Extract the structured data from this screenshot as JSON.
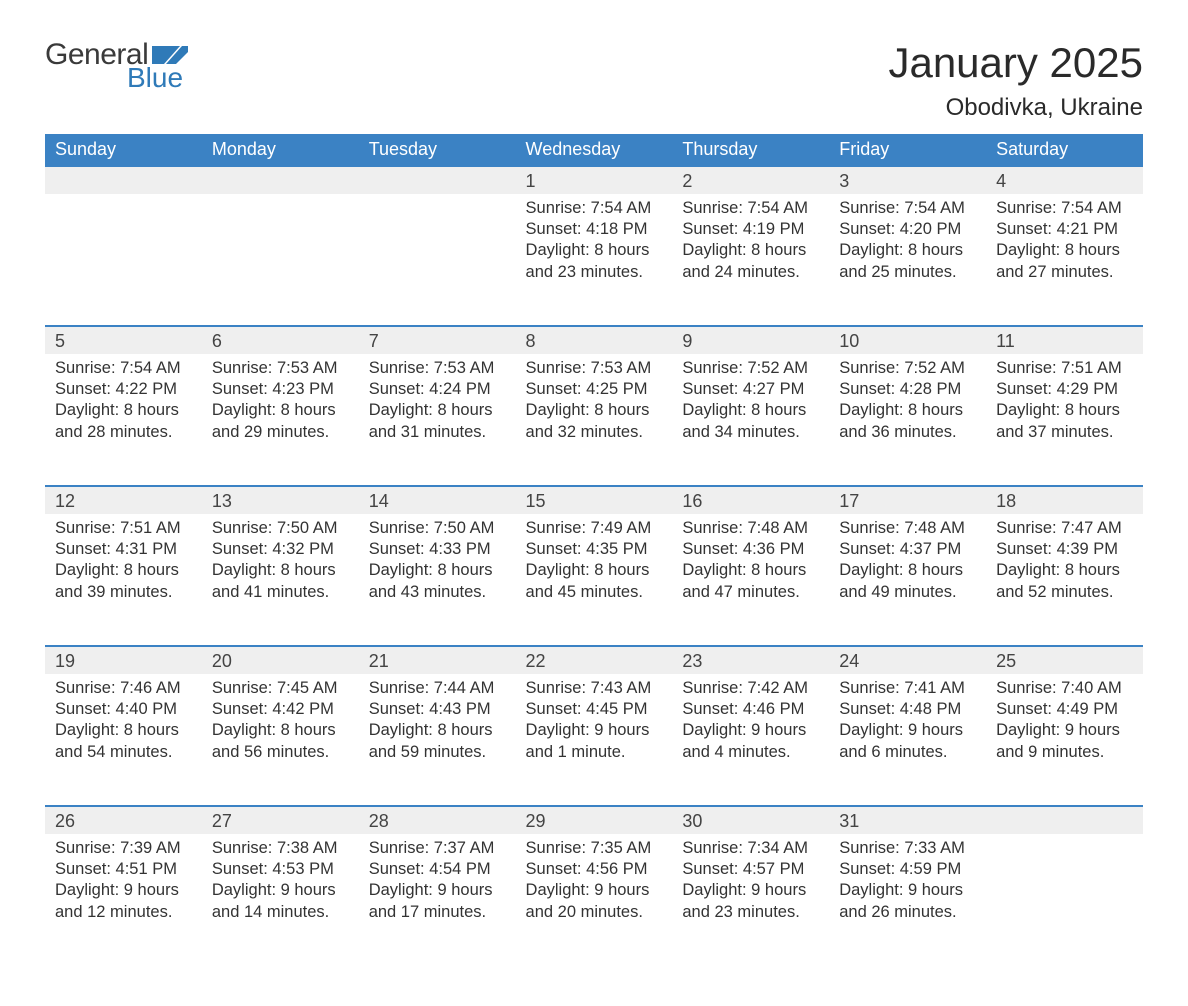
{
  "brand": {
    "word1": "General",
    "word2": "Blue",
    "accent_color": "#2f7ab8"
  },
  "title": "January 2025",
  "location": "Obodivka, Ukraine",
  "colors": {
    "header_bg": "#3b82c4",
    "header_text": "#ffffff",
    "daynum_bg": "#efefef",
    "row_border": "#3b82c4",
    "body_text": "#333333",
    "page_bg": "#ffffff"
  },
  "typography": {
    "title_fontsize_pt": 32,
    "location_fontsize_pt": 18,
    "dayheader_fontsize_pt": 14,
    "daynum_fontsize_pt": 14,
    "body_fontsize_pt": 12
  },
  "day_headers": [
    "Sunday",
    "Monday",
    "Tuesday",
    "Wednesday",
    "Thursday",
    "Friday",
    "Saturday"
  ],
  "weeks": [
    [
      null,
      null,
      null,
      {
        "n": "1",
        "sunrise": "Sunrise: 7:54 AM",
        "sunset": "Sunset: 4:18 PM",
        "day1": "Daylight: 8 hours",
        "day2": "and 23 minutes."
      },
      {
        "n": "2",
        "sunrise": "Sunrise: 7:54 AM",
        "sunset": "Sunset: 4:19 PM",
        "day1": "Daylight: 8 hours",
        "day2": "and 24 minutes."
      },
      {
        "n": "3",
        "sunrise": "Sunrise: 7:54 AM",
        "sunset": "Sunset: 4:20 PM",
        "day1": "Daylight: 8 hours",
        "day2": "and 25 minutes."
      },
      {
        "n": "4",
        "sunrise": "Sunrise: 7:54 AM",
        "sunset": "Sunset: 4:21 PM",
        "day1": "Daylight: 8 hours",
        "day2": "and 27 minutes."
      }
    ],
    [
      {
        "n": "5",
        "sunrise": "Sunrise: 7:54 AM",
        "sunset": "Sunset: 4:22 PM",
        "day1": "Daylight: 8 hours",
        "day2": "and 28 minutes."
      },
      {
        "n": "6",
        "sunrise": "Sunrise: 7:53 AM",
        "sunset": "Sunset: 4:23 PM",
        "day1": "Daylight: 8 hours",
        "day2": "and 29 minutes."
      },
      {
        "n": "7",
        "sunrise": "Sunrise: 7:53 AM",
        "sunset": "Sunset: 4:24 PM",
        "day1": "Daylight: 8 hours",
        "day2": "and 31 minutes."
      },
      {
        "n": "8",
        "sunrise": "Sunrise: 7:53 AM",
        "sunset": "Sunset: 4:25 PM",
        "day1": "Daylight: 8 hours",
        "day2": "and 32 minutes."
      },
      {
        "n": "9",
        "sunrise": "Sunrise: 7:52 AM",
        "sunset": "Sunset: 4:27 PM",
        "day1": "Daylight: 8 hours",
        "day2": "and 34 minutes."
      },
      {
        "n": "10",
        "sunrise": "Sunrise: 7:52 AM",
        "sunset": "Sunset: 4:28 PM",
        "day1": "Daylight: 8 hours",
        "day2": "and 36 minutes."
      },
      {
        "n": "11",
        "sunrise": "Sunrise: 7:51 AM",
        "sunset": "Sunset: 4:29 PM",
        "day1": "Daylight: 8 hours",
        "day2": "and 37 minutes."
      }
    ],
    [
      {
        "n": "12",
        "sunrise": "Sunrise: 7:51 AM",
        "sunset": "Sunset: 4:31 PM",
        "day1": "Daylight: 8 hours",
        "day2": "and 39 minutes."
      },
      {
        "n": "13",
        "sunrise": "Sunrise: 7:50 AM",
        "sunset": "Sunset: 4:32 PM",
        "day1": "Daylight: 8 hours",
        "day2": "and 41 minutes."
      },
      {
        "n": "14",
        "sunrise": "Sunrise: 7:50 AM",
        "sunset": "Sunset: 4:33 PM",
        "day1": "Daylight: 8 hours",
        "day2": "and 43 minutes."
      },
      {
        "n": "15",
        "sunrise": "Sunrise: 7:49 AM",
        "sunset": "Sunset: 4:35 PM",
        "day1": "Daylight: 8 hours",
        "day2": "and 45 minutes."
      },
      {
        "n": "16",
        "sunrise": "Sunrise: 7:48 AM",
        "sunset": "Sunset: 4:36 PM",
        "day1": "Daylight: 8 hours",
        "day2": "and 47 minutes."
      },
      {
        "n": "17",
        "sunrise": "Sunrise: 7:48 AM",
        "sunset": "Sunset: 4:37 PM",
        "day1": "Daylight: 8 hours",
        "day2": "and 49 minutes."
      },
      {
        "n": "18",
        "sunrise": "Sunrise: 7:47 AM",
        "sunset": "Sunset: 4:39 PM",
        "day1": "Daylight: 8 hours",
        "day2": "and 52 minutes."
      }
    ],
    [
      {
        "n": "19",
        "sunrise": "Sunrise: 7:46 AM",
        "sunset": "Sunset: 4:40 PM",
        "day1": "Daylight: 8 hours",
        "day2": "and 54 minutes."
      },
      {
        "n": "20",
        "sunrise": "Sunrise: 7:45 AM",
        "sunset": "Sunset: 4:42 PM",
        "day1": "Daylight: 8 hours",
        "day2": "and 56 minutes."
      },
      {
        "n": "21",
        "sunrise": "Sunrise: 7:44 AM",
        "sunset": "Sunset: 4:43 PM",
        "day1": "Daylight: 8 hours",
        "day2": "and 59 minutes."
      },
      {
        "n": "22",
        "sunrise": "Sunrise: 7:43 AM",
        "sunset": "Sunset: 4:45 PM",
        "day1": "Daylight: 9 hours",
        "day2": "and 1 minute."
      },
      {
        "n": "23",
        "sunrise": "Sunrise: 7:42 AM",
        "sunset": "Sunset: 4:46 PM",
        "day1": "Daylight: 9 hours",
        "day2": "and 4 minutes."
      },
      {
        "n": "24",
        "sunrise": "Sunrise: 7:41 AM",
        "sunset": "Sunset: 4:48 PM",
        "day1": "Daylight: 9 hours",
        "day2": "and 6 minutes."
      },
      {
        "n": "25",
        "sunrise": "Sunrise: 7:40 AM",
        "sunset": "Sunset: 4:49 PM",
        "day1": "Daylight: 9 hours",
        "day2": "and 9 minutes."
      }
    ],
    [
      {
        "n": "26",
        "sunrise": "Sunrise: 7:39 AM",
        "sunset": "Sunset: 4:51 PM",
        "day1": "Daylight: 9 hours",
        "day2": "and 12 minutes."
      },
      {
        "n": "27",
        "sunrise": "Sunrise: 7:38 AM",
        "sunset": "Sunset: 4:53 PM",
        "day1": "Daylight: 9 hours",
        "day2": "and 14 minutes."
      },
      {
        "n": "28",
        "sunrise": "Sunrise: 7:37 AM",
        "sunset": "Sunset: 4:54 PM",
        "day1": "Daylight: 9 hours",
        "day2": "and 17 minutes."
      },
      {
        "n": "29",
        "sunrise": "Sunrise: 7:35 AM",
        "sunset": "Sunset: 4:56 PM",
        "day1": "Daylight: 9 hours",
        "day2": "and 20 minutes."
      },
      {
        "n": "30",
        "sunrise": "Sunrise: 7:34 AM",
        "sunset": "Sunset: 4:57 PM",
        "day1": "Daylight: 9 hours",
        "day2": "and 23 minutes."
      },
      {
        "n": "31",
        "sunrise": "Sunrise: 7:33 AM",
        "sunset": "Sunset: 4:59 PM",
        "day1": "Daylight: 9 hours",
        "day2": "and 26 minutes."
      },
      null
    ]
  ]
}
